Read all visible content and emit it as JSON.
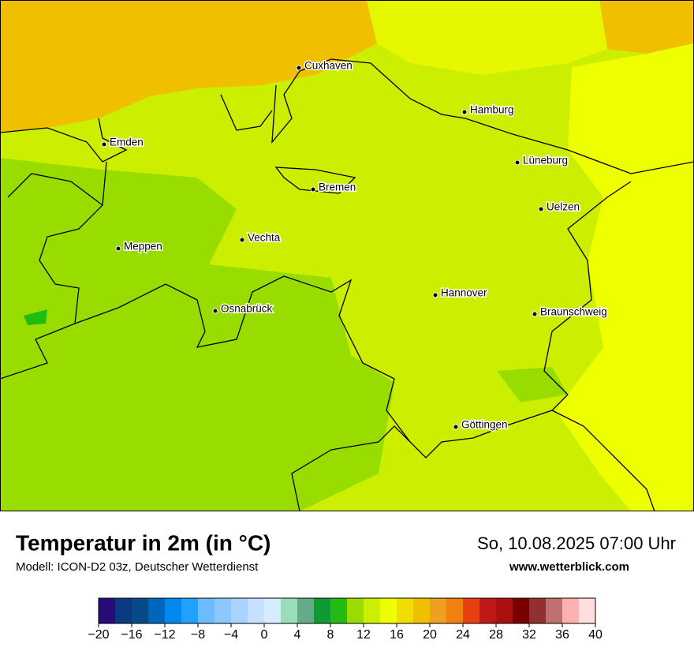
{
  "map": {
    "cities": [
      "Cuxhaven",
      "Hamburg",
      "Emden",
      "Lüneburg",
      "Bremen",
      "Uelzen",
      "Vechta",
      "Meppen",
      "Hannover",
      "Osnabrück",
      "Braunschweig",
      "Göttingen"
    ]
  },
  "footer": {
    "title": "Temperatur in 2m (in °C)",
    "model": "Modell: ICON-D2 03z, Deutscher Wetterdienst",
    "datetime": "So, 10.08.2025 07:00 Uhr",
    "website": "www.wetterblick.com"
  },
  "colorbar": {
    "bounds": [
      -20,
      -18,
      -16,
      -14,
      -12,
      -10,
      -8,
      -6,
      -4,
      -2,
      0,
      2,
      4,
      6,
      8,
      10,
      12,
      14,
      16,
      18,
      20,
      22,
      24,
      26,
      28,
      30,
      32,
      34,
      36,
      38,
      40
    ],
    "colors": [
      "#2b0a7a",
      "#0a3a80",
      "#064a8a",
      "#0066bb",
      "#0088ee",
      "#22a0ff",
      "#6cbaff",
      "#8cc8ff",
      "#aad4ff",
      "#c8e0ff",
      "#d8ecff",
      "#99ddbb",
      "#66aa88",
      "#119933",
      "#22bb11",
      "#99dd00",
      "#ccee00",
      "#eeff00",
      "#f2dd00",
      "#f0c000",
      "#f0a020",
      "#f08010",
      "#e84010",
      "#c01818",
      "#aa1010",
      "#7a0000",
      "#903030",
      "#c07070",
      "#ffb0b0",
      "#ffdddd"
    ],
    "ticks": [
      {
        "value": -20,
        "label": "−20"
      },
      {
        "value": -16,
        "label": "−16"
      },
      {
        "value": -12,
        "label": "−12"
      },
      {
        "value": -8,
        "label": "−8"
      },
      {
        "value": -4,
        "label": "−4"
      },
      0,
      4,
      8,
      12,
      16,
      20,
      24,
      28,
      32,
      36,
      40
    ]
  }
}
